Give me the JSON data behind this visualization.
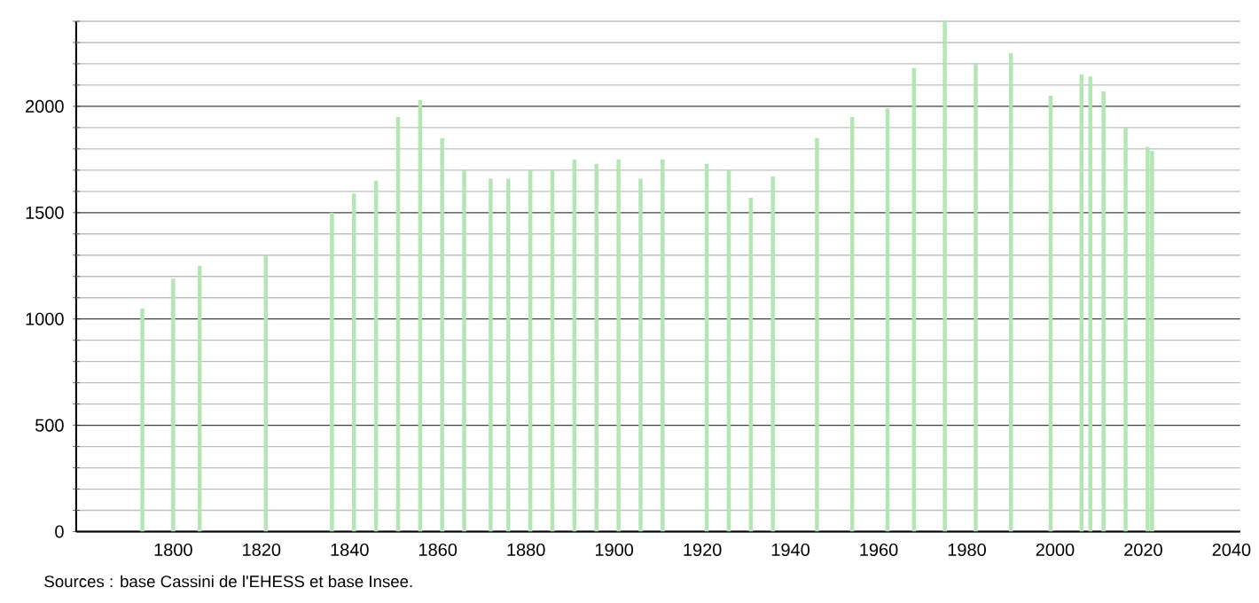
{
  "chart_data": {
    "type": "bar",
    "color": "#b3e6b3",
    "x": [
      1793,
      1800,
      1806,
      1821,
      1836,
      1841,
      1846,
      1851,
      1856,
      1861,
      1866,
      1872,
      1876,
      1881,
      1886,
      1891,
      1896,
      1901,
      1906,
      1911,
      1921,
      1926,
      1931,
      1936,
      1946,
      1954,
      1962,
      1968,
      1975,
      1982,
      1990,
      1999,
      2006,
      2008,
      2011,
      2016,
      2021,
      2022
    ],
    "values": [
      1050,
      1190,
      1250,
      1300,
      1500,
      1590,
      1650,
      1950,
      2030,
      1850,
      1700,
      1660,
      1660,
      1700,
      1700,
      1750,
      1730,
      1750,
      1660,
      1750,
      1730,
      1700,
      1570,
      1670,
      1850,
      1950,
      1990,
      2180,
      2400,
      2200,
      2250,
      2050,
      2150,
      2140,
      2070,
      1900,
      1810,
      1790
    ],
    "xlim": [
      1778,
      2042
    ],
    "xticks": [
      1800,
      1820,
      1840,
      1860,
      1880,
      1900,
      1920,
      1940,
      1960,
      1980,
      2000,
      2020,
      2040
    ],
    "ylim": [
      0,
      2400
    ],
    "yticks": [
      0,
      {
        "value": 100,
        "label": null
      },
      {
        "value": 200,
        "label": null
      },
      {
        "value": 300,
        "label": null
      },
      {
        "value": 400,
        "label": null
      },
      500,
      {
        "value": 600,
        "label": null
      },
      {
        "value": 700,
        "label": null
      },
      {
        "value": 800,
        "label": null
      },
      {
        "value": 900,
        "label": null
      },
      1000,
      {
        "value": 1100,
        "label": null
      },
      {
        "value": 1200,
        "label": null
      },
      {
        "value": 1300,
        "label": null
      },
      {
        "value": 1400,
        "label": null
      },
      1500,
      {
        "value": 1600,
        "label": null
      },
      {
        "value": 1700,
        "label": null
      },
      {
        "value": 1800,
        "label": null
      },
      {
        "value": 1900,
        "label": null
      },
      2000,
      {
        "value": 2100,
        "label": null
      },
      {
        "value": 2200,
        "label": null
      },
      {
        "value": 2300,
        "label": null
      },
      {
        "value": 2400,
        "label": null
      }
    ],
    "grid": "y",
    "annotations": [
      "Sources : base Cassini de l'EHESS et base Insee."
    ]
  }
}
